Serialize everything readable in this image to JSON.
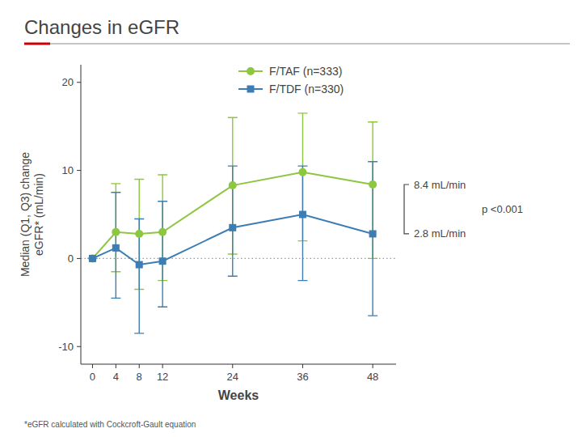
{
  "chart_data": {
    "type": "line",
    "title": "Changes in eGFR",
    "xlabel": "Weeks",
    "ylabel": "Median (Q1, Q3) change\neGFR* (mL/min)",
    "footnote": "*eGFR calculated with Cockcroft-Gault equation",
    "p_value": "p <0.001",
    "x": [
      0,
      4,
      8,
      12,
      24,
      36,
      48
    ],
    "xlim": [
      -2,
      52
    ],
    "xticks": [
      0,
      4,
      8,
      12,
      24,
      36,
      48
    ],
    "ylim": [
      -12,
      22
    ],
    "yticks": [
      -10,
      0,
      10,
      20
    ],
    "reference_y": 0,
    "grid": false,
    "legend": "top",
    "series": [
      {
        "name": "F/TAF (n=333)",
        "color": "#8dc63f",
        "marker": "circle",
        "values": [
          0,
          3.0,
          2.8,
          3.0,
          8.3,
          9.8,
          8.4
        ],
        "low": [
          0,
          -1.5,
          -3.5,
          -2.5,
          0.5,
          2.0,
          0.0
        ],
        "high": [
          0,
          8.5,
          9.0,
          9.5,
          16.0,
          16.5,
          15.5
        ],
        "end_label": "8.4 mL/min"
      },
      {
        "name": "F/TDF (n=330)",
        "color": "#3d7db3",
        "marker": "square",
        "values": [
          0,
          1.2,
          -0.7,
          -0.3,
          3.5,
          5.0,
          2.8
        ],
        "low": [
          0,
          -4.5,
          -8.5,
          -5.5,
          -2.0,
          -2.5,
          -6.5
        ],
        "high": [
          0,
          7.5,
          4.5,
          6.5,
          10.5,
          10.5,
          11.0
        ],
        "end_label": "2.8 mL/min"
      }
    ]
  }
}
